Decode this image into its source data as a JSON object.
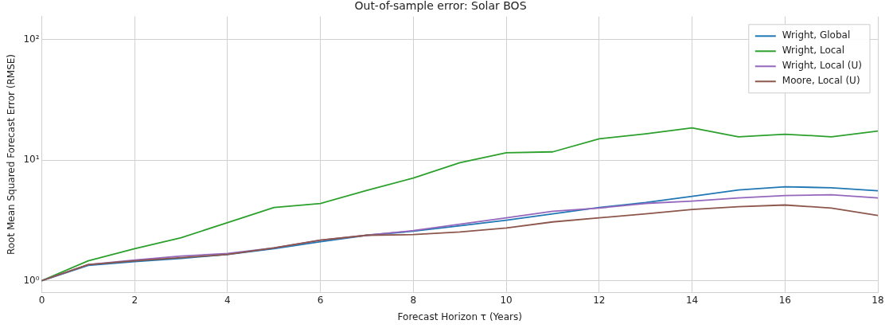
{
  "chart_data": {
    "type": "line",
    "title": "Out-of-sample error: Solar BOS",
    "xlabel": "Forecast Horizon τ (Years)",
    "ylabel": "Root Mean Squared Forecast Error (RMSE)",
    "x": [
      0,
      1,
      2,
      3,
      4,
      5,
      6,
      7,
      8,
      9,
      10,
      11,
      12,
      13,
      14,
      15,
      16,
      17,
      18
    ],
    "series": [
      {
        "name": "Wright, Global",
        "color": "#1f77b4",
        "values": [
          1,
          1.34,
          1.44,
          1.53,
          1.65,
          1.84,
          2.1,
          2.38,
          2.57,
          2.85,
          3.17,
          3.58,
          4.05,
          4.44,
          5.0,
          5.65,
          6.0,
          5.9,
          5.57
        ]
      },
      {
        "name": "Wright, Local",
        "color": "#2ca02c",
        "values": [
          1,
          1.46,
          1.84,
          2.27,
          3.03,
          4.05,
          4.37,
          5.6,
          7.1,
          9.5,
          11.5,
          11.7,
          15,
          16.5,
          18.5,
          15.6,
          16.4,
          15.6,
          17.4
        ]
      },
      {
        "name": "Wright, Local (U)",
        "color": "#9467bd",
        "values": [
          1,
          1.36,
          1.48,
          1.6,
          1.68,
          1.87,
          2.17,
          2.38,
          2.6,
          2.94,
          3.32,
          3.76,
          4.0,
          4.37,
          4.57,
          4.86,
          5.08,
          5.16,
          4.86
        ]
      },
      {
        "name": "Moore, Local (U)",
        "color": "#8c564b",
        "values": [
          1,
          1.36,
          1.46,
          1.55,
          1.65,
          1.87,
          2.17,
          2.38,
          2.41,
          2.53,
          2.73,
          3.07,
          3.32,
          3.58,
          3.89,
          4.11,
          4.24,
          4.0,
          3.47
        ]
      }
    ],
    "xlim": [
      0,
      18
    ],
    "xticks": [
      0,
      2,
      4,
      6,
      8,
      10,
      12,
      14,
      16,
      18
    ],
    "ylim": [
      0.8,
      155
    ],
    "yticks": [
      {
        "value": 1,
        "label": "10⁰"
      },
      {
        "value": 10,
        "label": "10¹"
      },
      {
        "value": 100,
        "label": "10²"
      }
    ],
    "log": "y",
    "grid": true,
    "legend": "top right",
    "marker": "none",
    "line_style": "solid"
  }
}
